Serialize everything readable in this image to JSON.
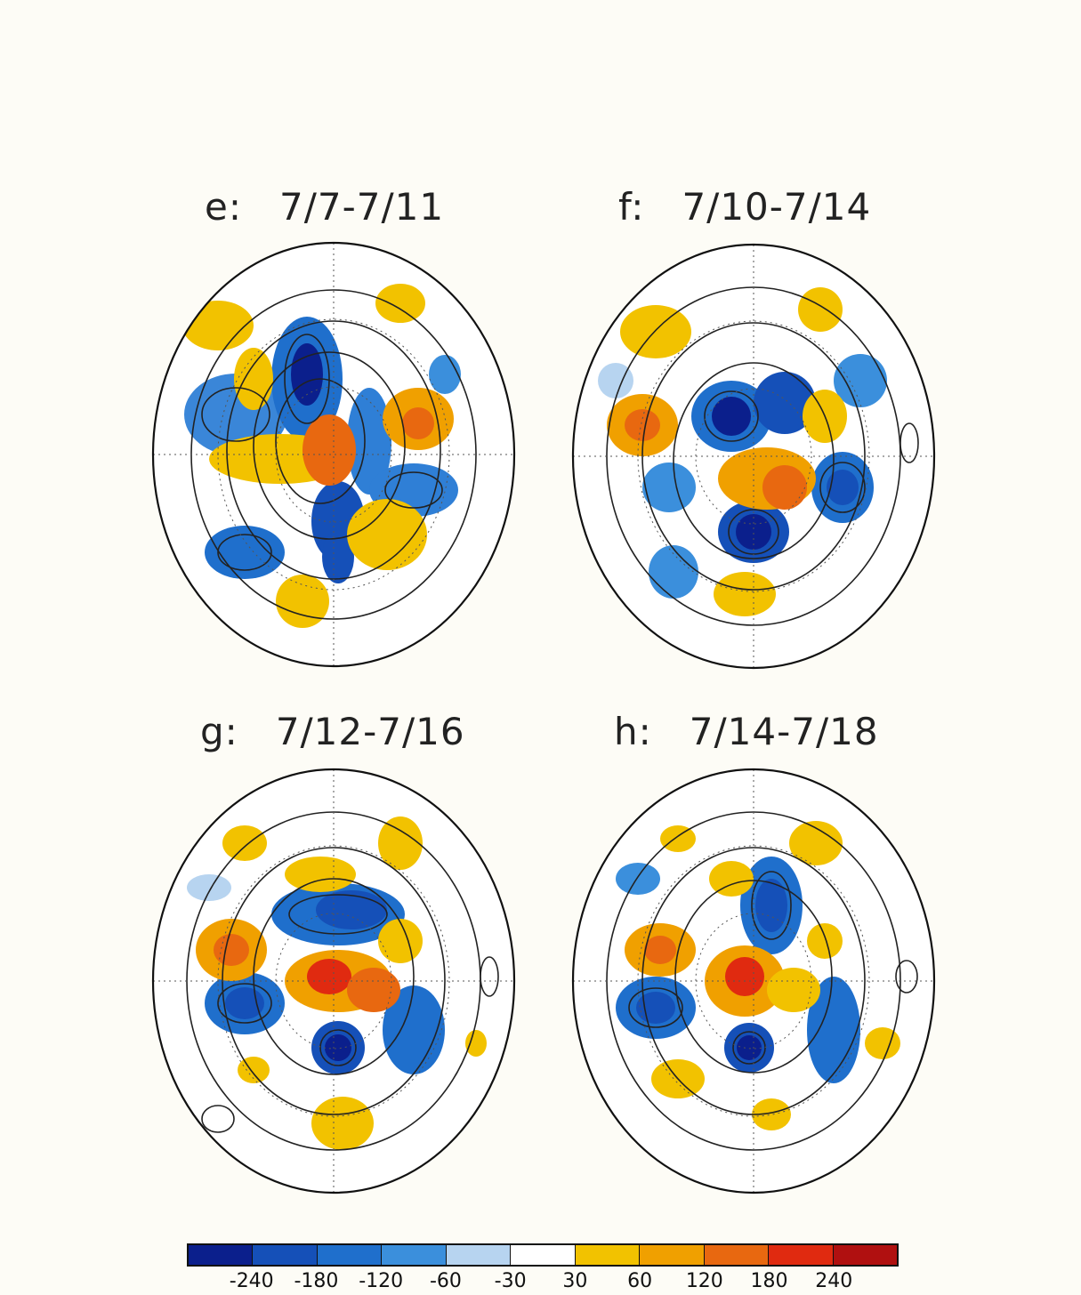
{
  "panels": [
    {
      "code": "e:",
      "dates": "7/7-7/11"
    },
    {
      "code": "f:",
      "dates": "7/10-7/14"
    },
    {
      "code": "g:",
      "dates": "7/12-7/16"
    },
    {
      "code": "h:",
      "dates": "7/14-7/18"
    }
  ],
  "colorbar": {
    "colors": [
      "#0b1f8c",
      "#1550b8",
      "#1f6fcc",
      "#3b8fdc",
      "#b7d4f0",
      "#ffffff",
      "#f2c200",
      "#f0a000",
      "#e86810",
      "#e02a10",
      "#b01010"
    ],
    "labels": [
      "-240",
      "-180",
      "-120",
      "-60",
      "-30",
      "30",
      "60",
      "120",
      "180",
      "240"
    ]
  }
}
